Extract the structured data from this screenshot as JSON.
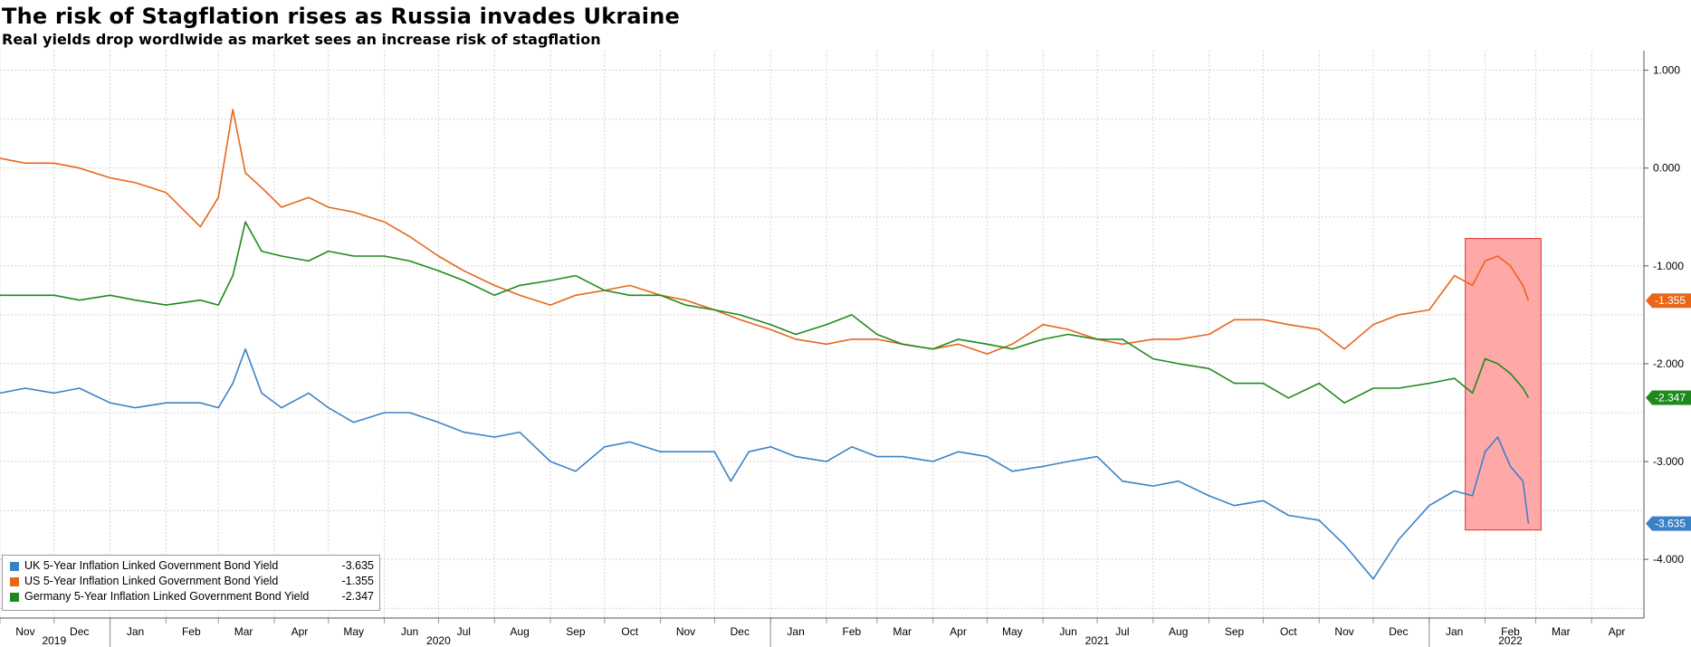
{
  "title": "The risk of Stagflation rises as Russia invades Ukraine",
  "subtitle": "Real yields drop wordlwide as market sees an increase risk of stagflation",
  "chart_data": {
    "type": "line",
    "title": "The risk of Stagflation rises as Russia invades Ukraine",
    "subtitle": "Real yields drop wordlwide as market sees an increase risk of stagflation",
    "xlabel": "",
    "ylabel": "",
    "x_range": [
      "2019-11-01",
      "2022-04-30"
    ],
    "ylim": [
      -4.6,
      1.2
    ],
    "y_ticks": [
      1,
      0,
      -1,
      -2,
      -3,
      -4
    ],
    "y_tick_labels": [
      "1.000",
      "0.000",
      "-1.000",
      "-2.000",
      "-3.000",
      "-4.000"
    ],
    "y_axis_side": "right",
    "grid": true,
    "legend_position": "bottom-left",
    "month_labels": [
      {
        "label": "Nov",
        "date": "2019-11-15"
      },
      {
        "label": "Dec",
        "date": "2019-12-15"
      },
      {
        "label": "Jan",
        "date": "2020-01-15"
      },
      {
        "label": "Feb",
        "date": "2020-02-15"
      },
      {
        "label": "Mar",
        "date": "2020-03-15"
      },
      {
        "label": "Apr",
        "date": "2020-04-15"
      },
      {
        "label": "May",
        "date": "2020-05-15"
      },
      {
        "label": "Jun",
        "date": "2020-06-15"
      },
      {
        "label": "Jul",
        "date": "2020-07-15"
      },
      {
        "label": "Aug",
        "date": "2020-08-15"
      },
      {
        "label": "Sep",
        "date": "2020-09-15"
      },
      {
        "label": "Oct",
        "date": "2020-10-15"
      },
      {
        "label": "Nov",
        "date": "2020-11-15"
      },
      {
        "label": "Dec",
        "date": "2020-12-15"
      },
      {
        "label": "Jan",
        "date": "2021-01-15"
      },
      {
        "label": "Feb",
        "date": "2021-02-15"
      },
      {
        "label": "Mar",
        "date": "2021-03-15"
      },
      {
        "label": "Apr",
        "date": "2021-04-15"
      },
      {
        "label": "May",
        "date": "2021-05-15"
      },
      {
        "label": "Jun",
        "date": "2021-06-15"
      },
      {
        "label": "Jul",
        "date": "2021-07-15"
      },
      {
        "label": "Aug",
        "date": "2021-08-15"
      },
      {
        "label": "Sep",
        "date": "2021-09-15"
      },
      {
        "label": "Oct",
        "date": "2021-10-15"
      },
      {
        "label": "Nov",
        "date": "2021-11-15"
      },
      {
        "label": "Dec",
        "date": "2021-12-15"
      },
      {
        "label": "Jan",
        "date": "2022-01-15"
      },
      {
        "label": "Feb",
        "date": "2022-02-15"
      },
      {
        "label": "Mar",
        "date": "2022-03-15"
      },
      {
        "label": "Apr",
        "date": "2022-04-15"
      }
    ],
    "year_labels": [
      {
        "label": "2019",
        "date": "2019-12-01"
      },
      {
        "label": "2020",
        "date": "2020-07-01"
      },
      {
        "label": "2021",
        "date": "2021-07-01"
      },
      {
        "label": "2022",
        "date": "2022-02-15"
      }
    ],
    "highlight_box": {
      "x_start": "2022-01-21",
      "x_end": "2022-03-04",
      "y_top": -0.72,
      "y_bottom": -3.7,
      "color": "#ff9999"
    },
    "series": [
      {
        "name": "UK 5-Year Inflation Linked Government Bond Yield",
        "last_value_label": "-3.635",
        "color": "#3a82c8",
        "x": [
          "2019-11-01",
          "2019-11-15",
          "2019-12-01",
          "2019-12-15",
          "2020-01-01",
          "2020-01-15",
          "2020-02-01",
          "2020-02-20",
          "2020-03-01",
          "2020-03-09",
          "2020-03-16",
          "2020-03-25",
          "2020-04-05",
          "2020-04-20",
          "2020-05-01",
          "2020-05-15",
          "2020-06-01",
          "2020-06-15",
          "2020-07-01",
          "2020-07-15",
          "2020-08-01",
          "2020-08-15",
          "2020-09-01",
          "2020-09-15",
          "2020-10-01",
          "2020-10-15",
          "2020-11-01",
          "2020-11-15",
          "2020-12-01",
          "2020-12-10",
          "2020-12-20",
          "2021-01-01",
          "2021-01-15",
          "2021-02-01",
          "2021-02-15",
          "2021-03-01",
          "2021-03-15",
          "2021-04-01",
          "2021-04-15",
          "2021-05-01",
          "2021-05-15",
          "2021-06-01",
          "2021-06-15",
          "2021-07-01",
          "2021-07-15",
          "2021-08-01",
          "2021-08-15",
          "2021-09-01",
          "2021-09-15",
          "2021-10-01",
          "2021-10-15",
          "2021-11-01",
          "2021-11-15",
          "2021-12-01",
          "2021-12-15",
          "2022-01-01",
          "2022-01-15",
          "2022-01-25",
          "2022-02-01",
          "2022-02-08",
          "2022-02-15",
          "2022-02-22",
          "2022-02-25"
        ],
        "values": [
          -2.3,
          -2.25,
          -2.3,
          -2.25,
          -2.4,
          -2.45,
          -2.4,
          -2.4,
          -2.45,
          -2.2,
          -1.85,
          -2.3,
          -2.45,
          -2.3,
          -2.45,
          -2.6,
          -2.5,
          -2.5,
          -2.6,
          -2.7,
          -2.75,
          -2.7,
          -3.0,
          -3.1,
          -2.85,
          -2.8,
          -2.9,
          -2.9,
          -2.9,
          -3.2,
          -2.9,
          -2.85,
          -2.95,
          -3.0,
          -2.85,
          -2.95,
          -2.95,
          -3.0,
          -2.9,
          -2.95,
          -3.1,
          -3.05,
          -3.0,
          -2.95,
          -3.2,
          -3.25,
          -3.2,
          -3.35,
          -3.45,
          -3.4,
          -3.55,
          -3.6,
          -3.85,
          -4.2,
          -3.8,
          -3.45,
          -3.3,
          -3.35,
          -2.9,
          -2.75,
          -3.05,
          -3.2,
          -3.635
        ]
      },
      {
        "name": "US 5-Year Inflation Linked Government Bond Yield",
        "last_value_label": "-1.355",
        "color": "#e8661a",
        "x": [
          "2019-11-01",
          "2019-11-15",
          "2019-12-01",
          "2019-12-15",
          "2020-01-01",
          "2020-01-15",
          "2020-02-01",
          "2020-02-20",
          "2020-03-01",
          "2020-03-09",
          "2020-03-16",
          "2020-03-25",
          "2020-04-05",
          "2020-04-20",
          "2020-05-01",
          "2020-05-15",
          "2020-06-01",
          "2020-06-15",
          "2020-07-01",
          "2020-07-15",
          "2020-08-01",
          "2020-08-15",
          "2020-09-01",
          "2020-09-15",
          "2020-10-01",
          "2020-10-15",
          "2020-11-01",
          "2020-11-15",
          "2020-12-01",
          "2020-12-15",
          "2021-01-01",
          "2021-01-15",
          "2021-02-01",
          "2021-02-15",
          "2021-03-01",
          "2021-03-15",
          "2021-04-01",
          "2021-04-15",
          "2021-05-01",
          "2021-05-15",
          "2021-06-01",
          "2021-06-15",
          "2021-07-01",
          "2021-07-15",
          "2021-08-01",
          "2021-08-15",
          "2021-09-01",
          "2021-09-15",
          "2021-10-01",
          "2021-10-15",
          "2021-11-01",
          "2021-11-15",
          "2021-12-01",
          "2021-12-15",
          "2022-01-01",
          "2022-01-15",
          "2022-01-25",
          "2022-02-01",
          "2022-02-08",
          "2022-02-15",
          "2022-02-22",
          "2022-02-25"
        ],
        "values": [
          0.1,
          0.05,
          0.05,
          0.0,
          -0.1,
          -0.15,
          -0.25,
          -0.6,
          -0.3,
          0.6,
          -0.05,
          -0.2,
          -0.4,
          -0.3,
          -0.4,
          -0.45,
          -0.55,
          -0.7,
          -0.9,
          -1.05,
          -1.2,
          -1.3,
          -1.4,
          -1.3,
          -1.25,
          -1.2,
          -1.3,
          -1.35,
          -1.45,
          -1.55,
          -1.65,
          -1.75,
          -1.8,
          -1.75,
          -1.75,
          -1.8,
          -1.85,
          -1.8,
          -1.9,
          -1.8,
          -1.6,
          -1.65,
          -1.75,
          -1.8,
          -1.75,
          -1.75,
          -1.7,
          -1.55,
          -1.55,
          -1.6,
          -1.65,
          -1.85,
          -1.6,
          -1.5,
          -1.45,
          -1.1,
          -1.2,
          -0.95,
          -0.9,
          -1.0,
          -1.2,
          -1.355
        ]
      },
      {
        "name": "Germany 5-Year Inflation Linked Government Bond Yield",
        "last_value_label": "-2.347",
        "color": "#1e8a1e",
        "x": [
          "2019-11-01",
          "2019-11-15",
          "2019-12-01",
          "2019-12-15",
          "2020-01-01",
          "2020-01-15",
          "2020-02-01",
          "2020-02-20",
          "2020-03-01",
          "2020-03-09",
          "2020-03-16",
          "2020-03-25",
          "2020-04-05",
          "2020-04-20",
          "2020-05-01",
          "2020-05-15",
          "2020-06-01",
          "2020-06-15",
          "2020-07-01",
          "2020-07-15",
          "2020-08-01",
          "2020-08-15",
          "2020-09-01",
          "2020-09-15",
          "2020-10-01",
          "2020-10-15",
          "2020-11-01",
          "2020-11-15",
          "2020-12-01",
          "2020-12-15",
          "2021-01-01",
          "2021-01-15",
          "2021-02-01",
          "2021-02-15",
          "2021-03-01",
          "2021-03-15",
          "2021-04-01",
          "2021-04-15",
          "2021-05-01",
          "2021-05-15",
          "2021-06-01",
          "2021-06-15",
          "2021-07-01",
          "2021-07-15",
          "2021-08-01",
          "2021-08-15",
          "2021-09-01",
          "2021-09-15",
          "2021-10-01",
          "2021-10-15",
          "2021-11-01",
          "2021-11-15",
          "2021-12-01",
          "2021-12-15",
          "2022-01-01",
          "2022-01-15",
          "2022-01-25",
          "2022-02-01",
          "2022-02-08",
          "2022-02-15",
          "2022-02-22",
          "2022-02-25"
        ],
        "values": [
          -1.3,
          -1.3,
          -1.3,
          -1.35,
          -1.3,
          -1.35,
          -1.4,
          -1.35,
          -1.4,
          -1.1,
          -0.55,
          -0.85,
          -0.9,
          -0.95,
          -0.85,
          -0.9,
          -0.9,
          -0.95,
          -1.05,
          -1.15,
          -1.3,
          -1.2,
          -1.15,
          -1.1,
          -1.25,
          -1.3,
          -1.3,
          -1.4,
          -1.45,
          -1.5,
          -1.6,
          -1.7,
          -1.6,
          -1.5,
          -1.7,
          -1.8,
          -1.85,
          -1.75,
          -1.8,
          -1.85,
          -1.75,
          -1.7,
          -1.75,
          -1.75,
          -1.95,
          -2.0,
          -2.05,
          -2.2,
          -2.2,
          -2.35,
          -2.2,
          -2.4,
          -2.25,
          -2.25,
          -2.2,
          -2.15,
          -2.3,
          -1.95,
          -2.0,
          -2.1,
          -2.25,
          -2.347
        ]
      }
    ]
  }
}
